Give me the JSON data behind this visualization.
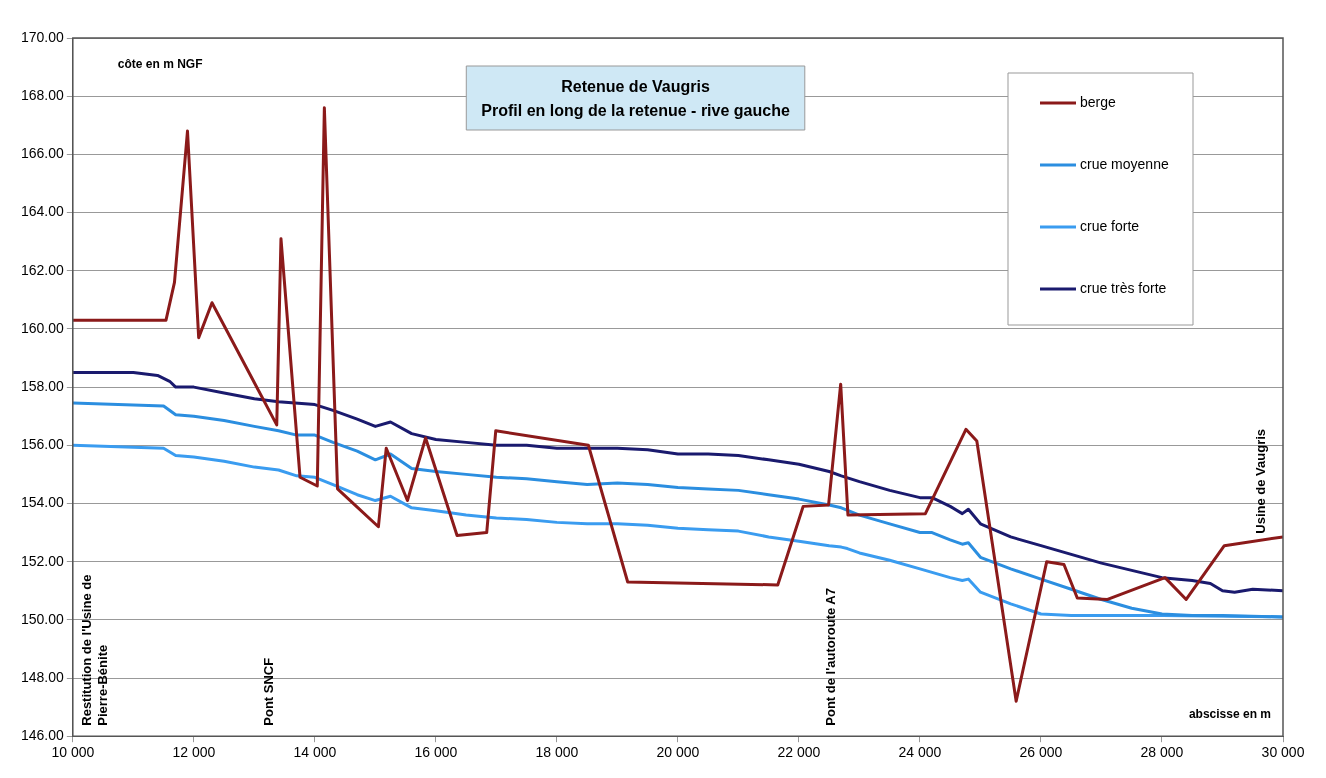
{
  "chart_data": {
    "type": "line",
    "title": "Retenue de Vaugris",
    "subtitle": "Profil en long de la retenue - rive gauche",
    "ylabel": "côte en m NGF",
    "xlabel": "abscisse en m",
    "annotations": [
      "Restitution de l'Usine de Pierre-Bénite",
      "Pont SNCF",
      "Pont de l'autoroute A7",
      "Usine de Vaugris"
    ],
    "xlim": [
      10000,
      30000
    ],
    "xticks": [
      {
        "value": 10000,
        "label": "10 000"
      },
      {
        "value": 12000,
        "label": "12 000"
      },
      {
        "value": 14000,
        "label": "14 000"
      },
      {
        "value": 16000,
        "label": "16 000"
      },
      {
        "value": 18000,
        "label": "18 000"
      },
      {
        "value": 20000,
        "label": "20 000"
      },
      {
        "value": 22000,
        "label": "22 000"
      },
      {
        "value": 24000,
        "label": "24 000"
      },
      {
        "value": 26000,
        "label": "26 000"
      },
      {
        "value": 28000,
        "label": "28 000"
      },
      {
        "value": 30000,
        "label": "30 000"
      }
    ],
    "ylim": [
      146,
      170
    ],
    "yticks": [
      {
        "value": 146,
        "label": "146.00"
      },
      {
        "value": 148,
        "label": "148.00"
      },
      {
        "value": 150,
        "label": "150.00"
      },
      {
        "value": 152,
        "label": "152.00"
      },
      {
        "value": 154,
        "label": "154.00"
      },
      {
        "value": 156,
        "label": "156.00"
      },
      {
        "value": 158,
        "label": "158.00"
      },
      {
        "value": 160,
        "label": "160.00"
      },
      {
        "value": 162,
        "label": "162.00"
      },
      {
        "value": 164,
        "label": "164.00"
      },
      {
        "value": 166,
        "label": "166.00"
      },
      {
        "value": 168,
        "label": "168.00"
      },
      {
        "value": 170,
        "label": "170.00"
      }
    ],
    "grid": "y",
    "legend": "top right",
    "marker": "none",
    "line_style": "solid",
    "series": [
      {
        "name": "berge",
        "color": "#8b1a1a",
        "x": [
          10000,
          11540,
          11680,
          11895,
          12080,
          12300,
          13370,
          13440,
          13755,
          14040,
          14157,
          14375,
          15050,
          15180,
          15530,
          15830,
          16350,
          16840,
          16990,
          18520,
          19170,
          21650,
          22070,
          22490,
          22690,
          22810,
          24090,
          24760,
          24940,
          25590,
          26095,
          26380,
          26600,
          27100,
          28050,
          28400,
          29030,
          30000
        ],
        "values": [
          160.3,
          160.3,
          161.6,
          166.8,
          159.7,
          160.9,
          156.7,
          163.1,
          154.9,
          154.6,
          167.6,
          154.5,
          153.2,
          155.9,
          154.1,
          156.25,
          152.9,
          153.0,
          156.5,
          156.0,
          151.3,
          151.2,
          153.9,
          153.95,
          158.1,
          153.6,
          153.65,
          156.55,
          156.15,
          147.2,
          152.0,
          151.9,
          150.75,
          150.7,
          151.45,
          150.7,
          152.55,
          152.85
        ]
      },
      {
        "name": "crue moyenne",
        "color": "#2b8ee0",
        "x": [
          10000,
          11500,
          11700,
          12000,
          12500,
          13000,
          13400,
          13700,
          14000,
          14300,
          14700,
          15000,
          15250,
          15600,
          16000,
          16500,
          17000,
          17500,
          18000,
          18500,
          19000,
          19500,
          20000,
          20500,
          21000,
          21500,
          22000,
          22500,
          22700,
          23000,
          23500,
          24000,
          24200,
          24500,
          24700,
          24800,
          25000,
          25500,
          26000,
          26500,
          27000,
          27500,
          28000,
          28500,
          29000,
          30000
        ],
        "values": [
          157.45,
          157.35,
          157.05,
          157.0,
          156.85,
          156.65,
          156.5,
          156.35,
          156.35,
          156.1,
          155.8,
          155.5,
          155.7,
          155.2,
          155.1,
          155.0,
          154.9,
          154.85,
          154.75,
          154.65,
          154.7,
          154.65,
          154.55,
          154.5,
          154.45,
          154.3,
          154.15,
          153.95,
          153.85,
          153.6,
          153.3,
          153.0,
          153.0,
          152.75,
          152.6,
          152.65,
          152.15,
          151.75,
          151.4,
          151.05,
          150.7,
          150.4,
          150.2,
          150.15,
          150.15,
          150.1
        ]
      },
      {
        "name": "crue forte",
        "color": "#3a9cf0",
        "x": [
          10000,
          11500,
          11700,
          12000,
          12500,
          13000,
          13400,
          13700,
          14000,
          14300,
          14700,
          15000,
          15250,
          15600,
          16000,
          16500,
          17000,
          17500,
          18000,
          18500,
          19000,
          19500,
          20000,
          20500,
          21000,
          21500,
          22000,
          22500,
          22700,
          22800,
          23000,
          23500,
          24000,
          24500,
          24700,
          24800,
          25000,
          25500,
          26000,
          26500,
          28000,
          30000
        ],
        "values": [
          156.0,
          155.9,
          155.65,
          155.6,
          155.45,
          155.25,
          155.15,
          154.95,
          154.9,
          154.65,
          154.3,
          154.1,
          154.25,
          153.85,
          153.75,
          153.6,
          153.5,
          153.45,
          153.35,
          153.3,
          153.3,
          153.25,
          153.15,
          153.1,
          153.05,
          152.85,
          152.7,
          152.55,
          152.5,
          152.45,
          152.3,
          152.05,
          151.75,
          151.45,
          151.35,
          151.4,
          150.95,
          150.55,
          150.2,
          150.15,
          150.15,
          150.1
        ]
      },
      {
        "name": "crue très forte",
        "color": "#1a1a6e",
        "x": [
          10000,
          11000,
          11400,
          11600,
          11700,
          12000,
          12500,
          13000,
          13400,
          14000,
          14300,
          14700,
          15000,
          15250,
          15600,
          16000,
          16500,
          17000,
          17500,
          18000,
          18500,
          19000,
          19500,
          20000,
          20500,
          21000,
          21500,
          22000,
          22500,
          22700,
          23000,
          23500,
          24000,
          24200,
          24500,
          24700,
          24800,
          25000,
          25500,
          26000,
          26500,
          27000,
          27500,
          28000,
          28500,
          28800,
          29000,
          29200,
          29500,
          30000
        ],
        "values": [
          158.5,
          158.5,
          158.4,
          158.2,
          158.0,
          158.0,
          157.8,
          157.6,
          157.5,
          157.4,
          157.2,
          156.9,
          156.65,
          156.8,
          156.4,
          156.2,
          156.1,
          156.0,
          156.0,
          155.9,
          155.9,
          155.9,
          155.85,
          155.7,
          155.7,
          155.65,
          155.5,
          155.35,
          155.1,
          154.95,
          154.75,
          154.45,
          154.2,
          154.2,
          153.9,
          153.65,
          153.8,
          153.3,
          152.85,
          152.55,
          152.25,
          151.95,
          151.7,
          151.45,
          151.35,
          151.25,
          151.0,
          150.95,
          151.05,
          151.0
        ]
      }
    ]
  }
}
